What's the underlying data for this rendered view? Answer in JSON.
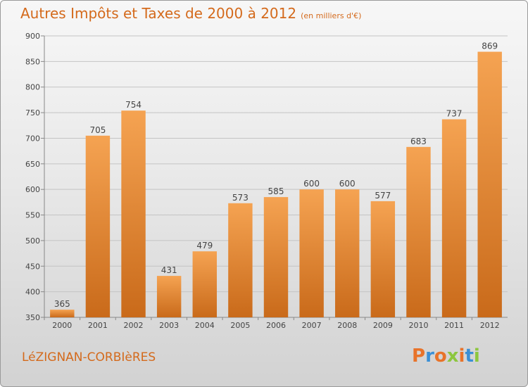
{
  "title": "Autres Impôts et Taxes de 2000 à 2012",
  "subtitle": "(en milliers d'€)",
  "commune": "LéZIGNAN-CORBIèRES",
  "logo": "Proxiti",
  "colors": {
    "title": "#d46a1c",
    "bar_top": "#f5a352",
    "bar_bottom": "#c96a1a",
    "grid": "#c4c4c4"
  },
  "chart_data": {
    "type": "bar",
    "title": "Autres Impôts et Taxes de 2000 à 2012",
    "subtitle": "(en milliers d'€)",
    "categories": [
      "2000",
      "2001",
      "2002",
      "2003",
      "2004",
      "2005",
      "2006",
      "2007",
      "2008",
      "2009",
      "2010",
      "2011",
      "2012"
    ],
    "values": [
      365,
      705,
      754,
      431,
      479,
      573,
      585,
      600,
      600,
      577,
      683,
      737,
      869
    ],
    "ylim": [
      350,
      900
    ],
    "yticks": [
      350,
      400,
      450,
      500,
      550,
      600,
      650,
      700,
      750,
      800,
      850,
      900
    ],
    "grid": true,
    "xlabel": "",
    "ylabel": ""
  }
}
